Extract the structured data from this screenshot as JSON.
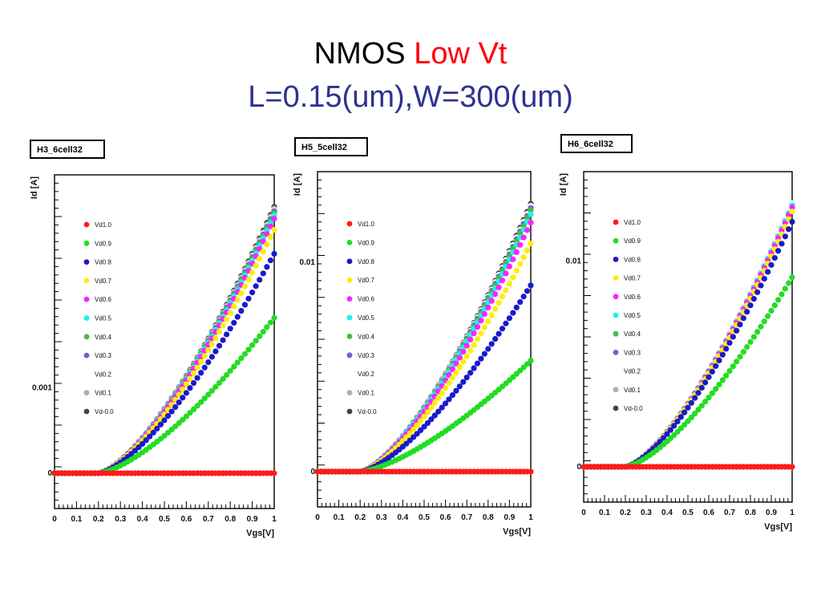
{
  "title": {
    "prefix": "NMOS",
    "highlight": "Low Vt",
    "subtitle": "L=0.15(um),W=300(um)",
    "prefix_color": "#000000",
    "highlight_color": "#ff0000",
    "subtitle_color": "#2e3192"
  },
  "chart_data": [
    {
      "type": "scatter",
      "panel_label": "H3_6cell32",
      "xlabel": "Vgs[V]",
      "ylabel": "Id [A]",
      "xlim": [
        0,
        1
      ],
      "x_ticks": [
        "0",
        "0.1",
        "0.2",
        "0.3",
        "0.4",
        "0.5",
        "0.6",
        "0.7",
        "0.8",
        "0.9",
        "1"
      ],
      "y_ticks": [
        {
          "value": 0,
          "label": "0"
        },
        {
          "value": 0.001,
          "label": "0.001"
        }
      ],
      "legend_position": "left",
      "series": [
        {
          "name": "Vd1.0",
          "color": "#ff1a1a",
          "max": 2e-05
        },
        {
          "name": "Vd0.9",
          "color": "#22dd22",
          "max": 0.00182
        },
        {
          "name": "Vd0.8",
          "color": "#1a1acc",
          "max": 0.00257
        },
        {
          "name": "Vd0.7",
          "color": "#ffee00",
          "max": 0.00285
        },
        {
          "name": "Vd0.6",
          "color": "#ff22ff",
          "max": 0.00298
        },
        {
          "name": "Vd0.5",
          "color": "#22eeee",
          "max": 0.00302
        },
        {
          "name": "Vd0.4",
          "color": "#44bb44",
          "max": 0.00305
        },
        {
          "name": "Vd0.3",
          "color": "#6666cc",
          "max": 0.00307
        },
        {
          "name": "Vd0.2",
          "color": "#ffffff",
          "max": 0.00308
        },
        {
          "name": "Vd0.1",
          "color": "#bbaaaa",
          "max": 0.0031
        },
        {
          "name": "Vd-0.0",
          "color": "#444444",
          "max": 0.00312
        }
      ]
    },
    {
      "type": "scatter",
      "panel_label": "H5_5cell32",
      "xlabel": "Vgs[V]",
      "ylabel": "Id [A]",
      "xlim": [
        0,
        1
      ],
      "x_ticks": [
        "0",
        "0.1",
        "0.2",
        "0.3",
        "0.4",
        "0.5",
        "0.6",
        "0.7",
        "0.8",
        "0.9",
        "1"
      ],
      "y_ticks": [
        {
          "value": 0,
          "label": "0"
        },
        {
          "value": 0.01,
          "label": "0.01"
        }
      ],
      "legend_position": "left",
      "series": [
        {
          "name": "Vd1.0",
          "color": "#ff1a1a",
          "max": 2e-05
        },
        {
          "name": "Vd0.9",
          "color": "#22dd22",
          "max": 0.0053
        },
        {
          "name": "Vd0.8",
          "color": "#1a1acc",
          "max": 0.0089
        },
        {
          "name": "Vd0.7",
          "color": "#ffee00",
          "max": 0.0109
        },
        {
          "name": "Vd0.6",
          "color": "#ff22ff",
          "max": 0.0119
        },
        {
          "name": "Vd0.5",
          "color": "#22eeee",
          "max": 0.0123
        },
        {
          "name": "Vd0.4",
          "color": "#44bb44",
          "max": 0.0125
        },
        {
          "name": "Vd0.3",
          "color": "#6666cc",
          "max": 0.0126
        },
        {
          "name": "Vd0.2",
          "color": "#ffffff",
          "max": 0.0127
        },
        {
          "name": "Vd0.1",
          "color": "#bbaaaa",
          "max": 0.0127
        },
        {
          "name": "Vd-0.0",
          "color": "#444444",
          "max": 0.0128
        }
      ]
    },
    {
      "type": "scatter",
      "panel_label": "H6_6cell32",
      "xlabel": "Vgs[V]",
      "ylabel": "Id [A]",
      "xlim": [
        0,
        1
      ],
      "x_ticks": [
        "0",
        "0.1",
        "0.2",
        "0.3",
        "0.4",
        "0.5",
        "0.6",
        "0.7",
        "0.8",
        "0.9",
        "1"
      ],
      "y_ticks": [
        {
          "value": 0,
          "label": "0"
        },
        {
          "value": 0.01,
          "label": "0.01"
        }
      ],
      "legend_position": "left",
      "series": [
        {
          "name": "Vd1.0",
          "color": "#ff1a1a",
          "max": 2e-05
        },
        {
          "name": "Vd0.9",
          "color": "#22dd22",
          "max": 0.0092
        },
        {
          "name": "Vd0.8",
          "color": "#1a1acc",
          "max": 0.0119
        },
        {
          "name": "Vd0.7",
          "color": "#ffee00",
          "max": 0.0124
        },
        {
          "name": "Vd0.6",
          "color": "#ff22ff",
          "max": 0.0126
        },
        {
          "name": "Vd0.5",
          "color": "#22eeee",
          "max": 0.0127
        },
        {
          "name": "Vd0.4",
          "color": "#44bb44",
          "max": 0.0127
        },
        {
          "name": "Vd0.3",
          "color": "#6666cc",
          "max": 0.0127
        },
        {
          "name": "Vd0.2",
          "color": "#ffffff",
          "max": 0.0128
        },
        {
          "name": "Vd0.1",
          "color": "#bbaaaa",
          "max": 0.0128
        },
        {
          "name": "Vd-0.0",
          "color": "#444444",
          "max": 0.0128
        }
      ]
    }
  ]
}
